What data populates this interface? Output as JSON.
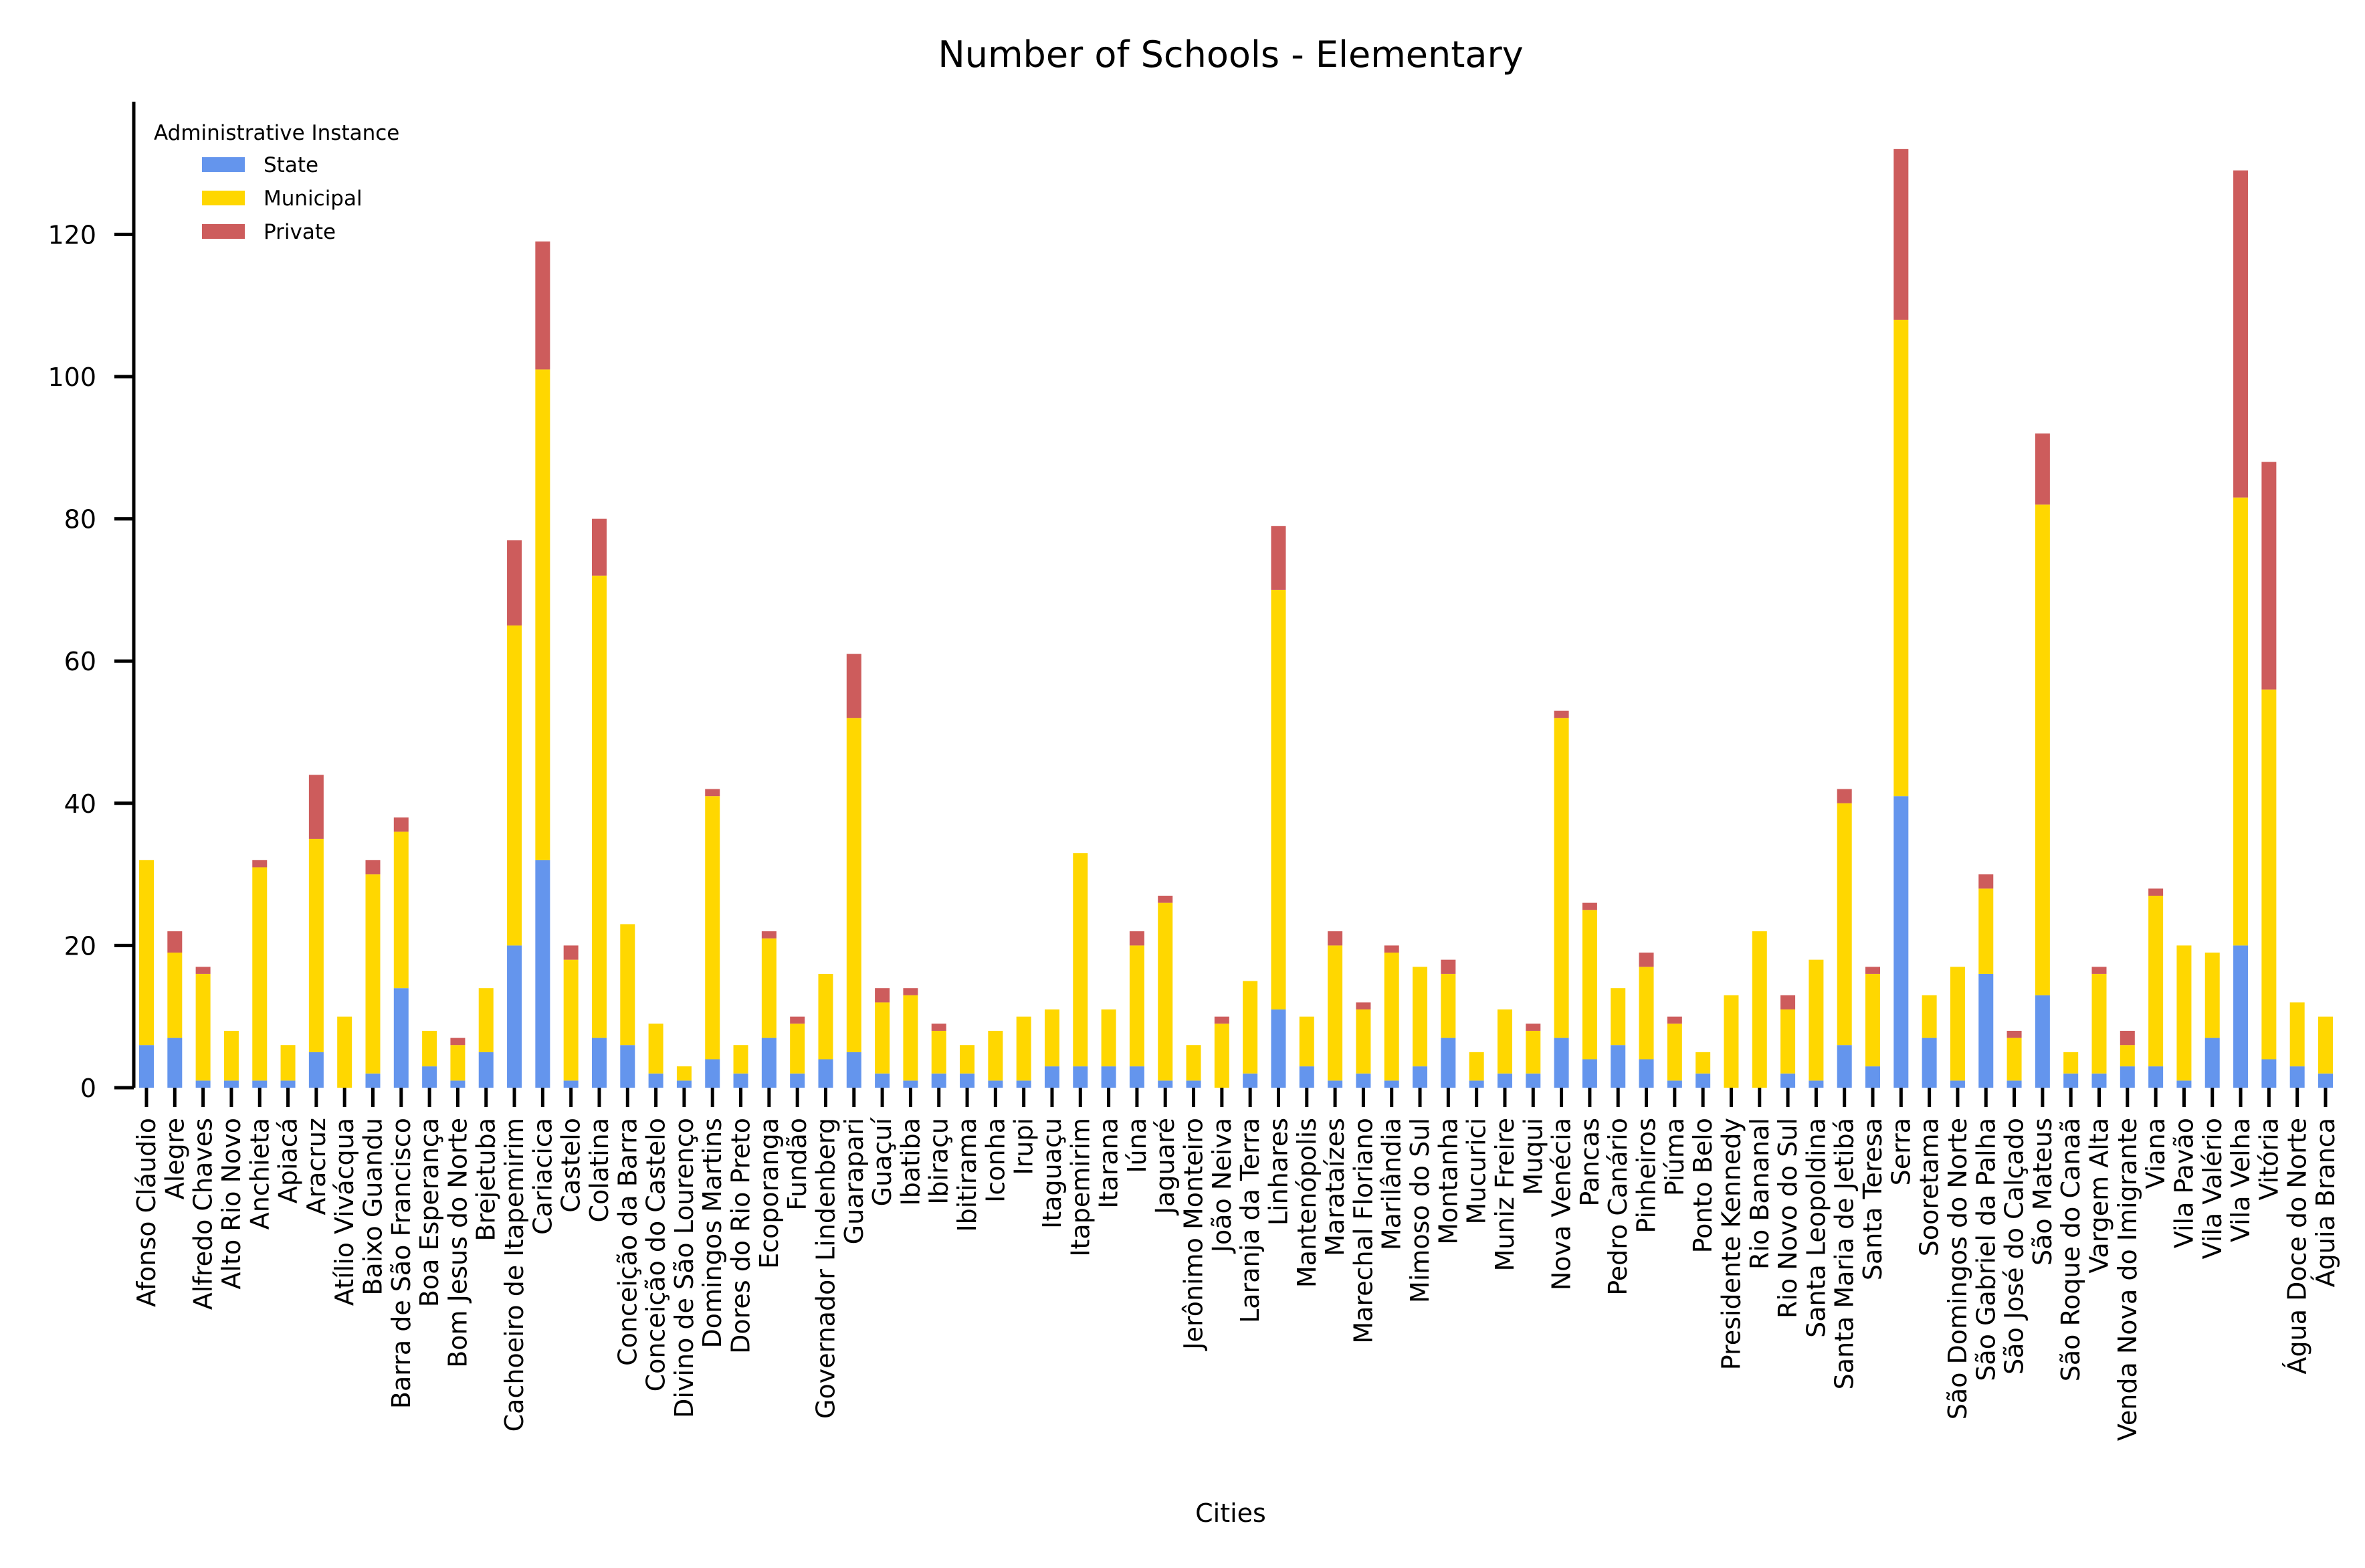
{
  "chart_data": {
    "type": "bar",
    "stacked": true,
    "title": "Number of Schools - Elementary",
    "xlabel": "Cities",
    "ylabel": "",
    "ylim": [
      0,
      139
    ],
    "yticks": [
      0,
      20,
      40,
      60,
      80,
      100,
      120
    ],
    "grid": false,
    "legend": {
      "title": "Administrative Instance",
      "placement": "top-left"
    },
    "categories": [
      "Afonso Cláudio",
      "Alegre",
      "Alfredo Chaves",
      "Alto Rio Novo",
      "Anchieta",
      "Apiacá",
      "Aracruz",
      "Atílio Vivácqua",
      "Baixo Guandu",
      "Barra de São Francisco",
      "Boa Esperança",
      "Bom Jesus do Norte",
      "Brejetuba",
      "Cachoeiro de Itapemirim",
      "Cariacica",
      "Castelo",
      "Colatina",
      "Conceição da Barra",
      "Conceição do Castelo",
      "Divino de São Lourenço",
      "Domingos Martins",
      "Dores do Rio Preto",
      "Ecoporanga",
      "Fundão",
      "Governador Lindenberg",
      "Guarapari",
      "Guaçuí",
      "Ibatiba",
      "Ibiraçu",
      "Ibitirama",
      "Iconha",
      "Irupi",
      "Itaguaçu",
      "Itapemirim",
      "Itarana",
      "Iúna",
      "Jaguaré",
      "Jerônimo Monteiro",
      "João Neiva",
      "Laranja da Terra",
      "Linhares",
      "Mantenópolis",
      "Marataízes",
      "Marechal Floriano",
      "Marilândia",
      "Mimoso do Sul",
      "Montanha",
      "Mucurici",
      "Muniz Freire",
      "Muqui",
      "Nova Venécia",
      "Pancas",
      "Pedro Canário",
      "Pinheiros",
      "Piúma",
      "Ponto Belo",
      "Presidente Kennedy",
      "Rio Bananal",
      "Rio Novo do Sul",
      "Santa Leopoldina",
      "Santa Maria de Jetibá",
      "Santa Teresa",
      "Serra",
      "Sooretama",
      "São Domingos do Norte",
      "São Gabriel da Palha",
      "São José do Calçado",
      "São Mateus",
      "São Roque do Canaã",
      "Vargem Alta",
      "Venda Nova do Imigrante",
      "Viana",
      "Vila Pavão",
      "Vila Valério",
      "Vila Velha",
      "Vitória",
      "Água Doce do Norte",
      "Águia Branca"
    ],
    "series": [
      {
        "name": "State",
        "color": "#6495ED",
        "values": [
          6,
          7,
          1,
          1,
          1,
          1,
          5,
          0,
          2,
          14,
          3,
          1,
          5,
          20,
          32,
          1,
          7,
          6,
          2,
          1,
          4,
          2,
          7,
          2,
          4,
          5,
          2,
          1,
          2,
          2,
          1,
          1,
          3,
          3,
          3,
          3,
          1,
          1,
          0,
          2,
          11,
          3,
          1,
          2,
          1,
          3,
          7,
          1,
          2,
          2,
          7,
          4,
          6,
          4,
          1,
          2,
          0,
          0,
          2,
          1,
          6,
          3,
          41,
          7,
          1,
          16,
          1,
          13,
          2,
          2,
          3,
          3,
          1,
          7,
          20,
          4,
          3,
          2
        ]
      },
      {
        "name": "Municipal",
        "color": "#FFD700",
        "values": [
          26,
          12,
          15,
          7,
          30,
          5,
          30,
          10,
          28,
          22,
          5,
          5,
          9,
          45,
          69,
          17,
          65,
          17,
          7,
          2,
          37,
          4,
          14,
          7,
          12,
          47,
          10,
          12,
          6,
          4,
          7,
          9,
          8,
          30,
          8,
          17,
          25,
          5,
          9,
          13,
          59,
          7,
          19,
          9,
          18,
          14,
          9,
          4,
          9,
          6,
          45,
          21,
          8,
          13,
          8,
          3,
          13,
          22,
          9,
          17,
          34,
          13,
          67,
          6,
          16,
          12,
          6,
          69,
          3,
          14,
          3,
          24,
          19,
          12,
          63,
          52,
          9,
          8
        ]
      },
      {
        "name": "Private",
        "color": "#CD5C5C",
        "values": [
          0,
          3,
          1,
          0,
          1,
          0,
          9,
          0,
          2,
          2,
          0,
          1,
          0,
          12,
          18,
          2,
          8,
          0,
          0,
          0,
          1,
          0,
          1,
          1,
          0,
          9,
          2,
          1,
          1,
          0,
          0,
          0,
          0,
          0,
          0,
          2,
          1,
          0,
          1,
          0,
          9,
          0,
          2,
          1,
          1,
          0,
          2,
          0,
          0,
          1,
          1,
          1,
          0,
          2,
          1,
          0,
          0,
          0,
          2,
          0,
          2,
          1,
          24,
          0,
          0,
          2,
          1,
          10,
          0,
          1,
          2,
          1,
          0,
          0,
          46,
          32,
          0,
          0
        ]
      }
    ]
  }
}
